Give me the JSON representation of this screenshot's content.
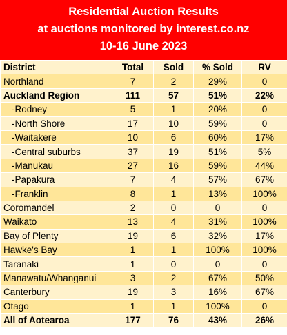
{
  "header": {
    "line1": "Residential Auction Results",
    "line2": "at auctions monitored by interest.co.nz",
    "line3": "10-16 June 2023"
  },
  "columns": [
    "District",
    "Total",
    "Sold",
    "% Sold",
    "RV"
  ],
  "rows": [
    {
      "district": "Northland",
      "total": "7",
      "sold": "2",
      "pct_sold": "29%",
      "rv": "0"
    },
    {
      "district": "Auckland Region",
      "total": "111",
      "sold": "57",
      "pct_sold": "51%",
      "rv": "22%"
    },
    {
      "district": "-Rodney",
      "total": "5",
      "sold": "1",
      "pct_sold": "20%",
      "rv": "0"
    },
    {
      "district": "-North Shore",
      "total": "17",
      "sold": "10",
      "pct_sold": "59%",
      "rv": "0"
    },
    {
      "district": "-Waitakere",
      "total": "10",
      "sold": "6",
      "pct_sold": "60%",
      "rv": "17%"
    },
    {
      "district": "-Central suburbs",
      "total": "37",
      "sold": "19",
      "pct_sold": "51%",
      "rv": "5%"
    },
    {
      "district": "-Manukau",
      "total": "27",
      "sold": "16",
      "pct_sold": "59%",
      "rv": "44%"
    },
    {
      "district": "-Papakura",
      "total": "7",
      "sold": "4",
      "pct_sold": "57%",
      "rv": "67%"
    },
    {
      "district": "-Franklin",
      "total": "8",
      "sold": "1",
      "pct_sold": "13%",
      "rv": "100%"
    },
    {
      "district": "Coromandel",
      "total": "2",
      "sold": "0",
      "pct_sold": "0",
      "rv": "0"
    },
    {
      "district": "Waikato",
      "total": "13",
      "sold": "4",
      "pct_sold": "31%",
      "rv": "100%"
    },
    {
      "district": "Bay of Plenty",
      "total": "19",
      "sold": "6",
      "pct_sold": "32%",
      "rv": "17%"
    },
    {
      "district": "Hawke's Bay",
      "total": "1",
      "sold": "1",
      "pct_sold": "100%",
      "rv": "100%"
    },
    {
      "district": "Taranaki",
      "total": "1",
      "sold": "0",
      "pct_sold": "0",
      "rv": "0"
    },
    {
      "district": "Manawatu/Whanganui",
      "total": "3",
      "sold": "2",
      "pct_sold": "67%",
      "rv": "50%"
    },
    {
      "district": "Canterbury",
      "total": "19",
      "sold": "3",
      "pct_sold": "16%",
      "rv": "67%"
    },
    {
      "district": "Otago",
      "total": "1",
      "sold": "1",
      "pct_sold": "100%",
      "rv": "0"
    },
    {
      "district": "All of Aotearoa",
      "total": "177",
      "sold": "76",
      "pct_sold": "43%",
      "rv": "26%"
    }
  ],
  "colors": {
    "header_bg": "#ff0000",
    "header_text": "#ffffff",
    "row_light": "#fff2cc",
    "row_dark": "#ffe699"
  }
}
